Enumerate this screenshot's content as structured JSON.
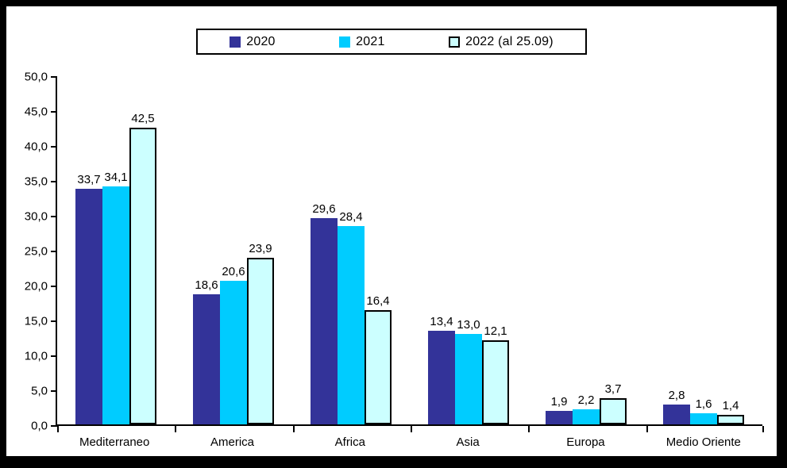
{
  "window": {
    "frame_color": "#000000",
    "panel_background": "#ffffff"
  },
  "legend": {
    "position": "top-center",
    "items": [
      {
        "label": "2020",
        "swatch_color": "#333399",
        "swatch_border": "#333399"
      },
      {
        "label": "2021",
        "swatch_color": "#00ccff",
        "swatch_border": "#00ccff"
      },
      {
        "label": "2022 (al 25.09)",
        "swatch_color": "#ccffff",
        "swatch_border": "#000000"
      }
    ]
  },
  "chart_data": {
    "type": "bar",
    "title": "",
    "xlabel": "",
    "ylabel": "",
    "categories": [
      "Mediterraneo",
      "America",
      "Africa",
      "Asia",
      "Europa",
      "Medio Oriente"
    ],
    "series": [
      {
        "name": "2020",
        "color": "#333399",
        "border_color": "#333399",
        "values": [
          33.7,
          18.6,
          29.6,
          13.4,
          1.9,
          2.8
        ],
        "labels": [
          "33,7",
          "18,6",
          "29,6",
          "13,4",
          "1,9",
          "2,8"
        ]
      },
      {
        "name": "2021",
        "color": "#00ccff",
        "border_color": "#00ccff",
        "values": [
          34.1,
          20.6,
          28.4,
          13.0,
          2.2,
          1.6
        ],
        "labels": [
          "34,1",
          "20,6",
          "28,4",
          "13,0",
          "2,2",
          "1,6"
        ]
      },
      {
        "name": "2022 (al 25.09)",
        "color": "#ccffff",
        "border_color": "#000000",
        "values": [
          42.5,
          23.9,
          16.4,
          12.1,
          3.7,
          1.4
        ],
        "labels": [
          "42,5",
          "23,9",
          "16,4",
          "12,1",
          "3,7",
          "1,4"
        ]
      }
    ],
    "ylim": [
      0,
      50
    ],
    "ytick_step": 5,
    "ytick_labels": [
      "0,0",
      "5,0",
      "10,0",
      "15,0",
      "20,0",
      "25,0",
      "30,0",
      "35,0",
      "40,0",
      "45,0",
      "50,0"
    ],
    "grid": false,
    "legend_position": "top-center",
    "decimal_separator": ","
  }
}
